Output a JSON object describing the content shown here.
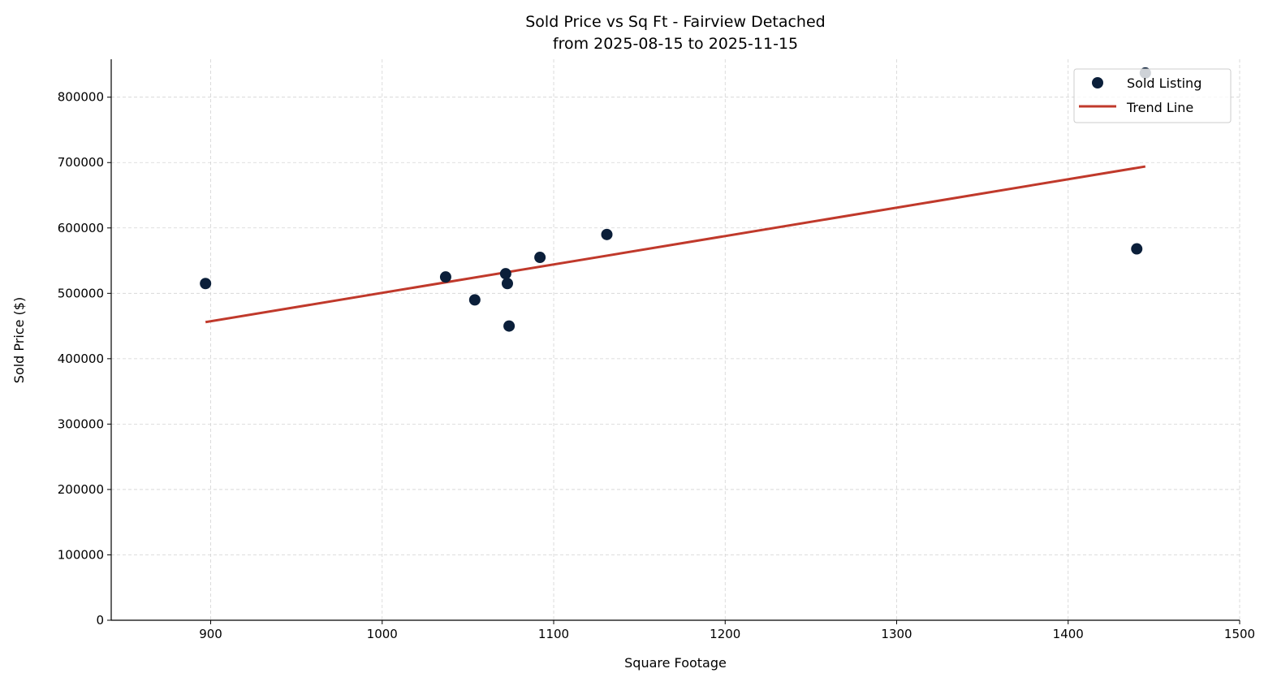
{
  "chart_data": {
    "type": "scatter",
    "title": "Sold Price vs Sq Ft - Fairview Detached",
    "subtitle": "from 2025-08-15 to 2025-11-15",
    "xlabel": "Square Footage",
    "ylabel": "Sold Price ($)",
    "xlim": [
      842,
      1500
    ],
    "ylim": [
      0,
      858000
    ],
    "xticks": [
      900,
      1000,
      1100,
      1200,
      1300,
      1400,
      1500
    ],
    "yticks": [
      0,
      100000,
      200000,
      300000,
      400000,
      500000,
      600000,
      700000,
      800000
    ],
    "grid": true,
    "legend_placement": "top-right",
    "series": [
      {
        "name": "Sold Listing",
        "type": "scatter",
        "color": "#0b1f3a",
        "points": [
          {
            "x": 897,
            "y": 515000
          },
          {
            "x": 1037,
            "y": 525000
          },
          {
            "x": 1054,
            "y": 490000
          },
          {
            "x": 1072,
            "y": 530000
          },
          {
            "x": 1073,
            "y": 515000
          },
          {
            "x": 1074,
            "y": 450000
          },
          {
            "x": 1092,
            "y": 555000
          },
          {
            "x": 1131,
            "y": 590000
          },
          {
            "x": 1440,
            "y": 568000
          },
          {
            "x": 1445,
            "y": 837000
          }
        ]
      },
      {
        "name": "Trend Line",
        "type": "line",
        "color": "#c0392b",
        "points": [
          {
            "x": 897,
            "y": 456000
          },
          {
            "x": 1445,
            "y": 694000
          }
        ]
      }
    ]
  }
}
